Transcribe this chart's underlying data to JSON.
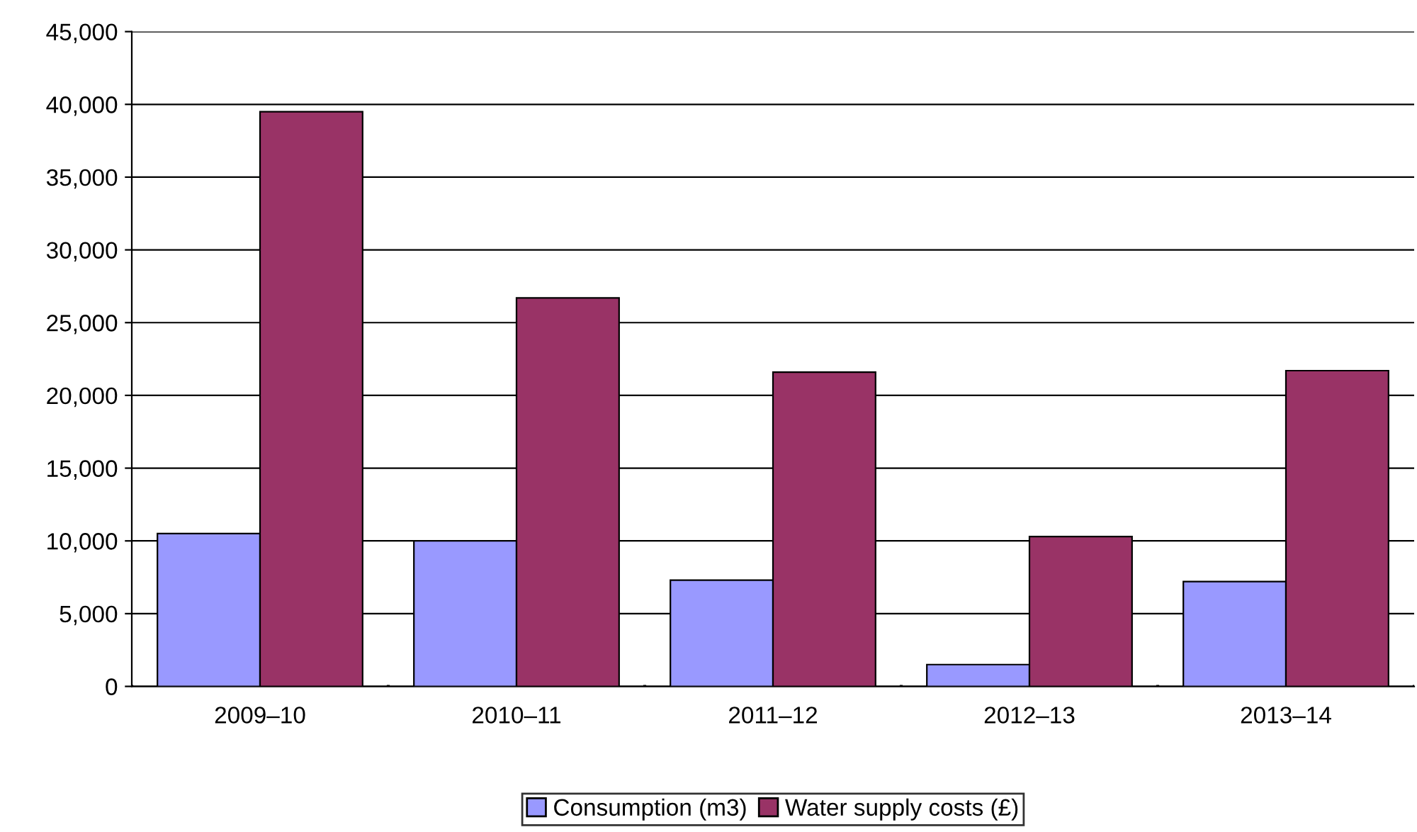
{
  "chart_data": {
    "type": "bar",
    "categories": [
      "2009–10",
      "2010–11",
      "2011–12",
      "2012–13",
      "2013–14"
    ],
    "series": [
      {
        "name": "Consumption (m3)",
        "color": "#9999ff",
        "values": [
          10500,
          10000,
          7300,
          1500,
          7200
        ]
      },
      {
        "name": "Water supply costs (£)",
        "color": "#993366",
        "values": [
          39500,
          26700,
          21600,
          10300,
          21700
        ]
      }
    ],
    "ylim": [
      0,
      45000
    ],
    "yticks": [
      0,
      {
        "value": 5000,
        "label": "5,000"
      },
      {
        "value": 10000,
        "label": "10,000"
      },
      {
        "value": 15000,
        "label": "15,000"
      },
      {
        "value": 20000,
        "label": "20,000"
      },
      {
        "value": 25000,
        "label": "25,000"
      },
      {
        "value": 30000,
        "label": "30,000"
      },
      {
        "value": 35000,
        "label": "35,000"
      },
      {
        "value": 40000,
        "label": "40,000"
      },
      {
        "value": 45000,
        "label": "45,000"
      }
    ],
    "grid": "y",
    "legend": "bottom"
  }
}
